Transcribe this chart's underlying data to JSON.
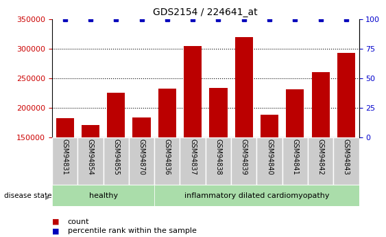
{
  "title": "GDS2154 / 224641_at",
  "samples": [
    "GSM94831",
    "GSM94854",
    "GSM94855",
    "GSM94870",
    "GSM94836",
    "GSM94837",
    "GSM94838",
    "GSM94839",
    "GSM94840",
    "GSM94841",
    "GSM94842",
    "GSM94843"
  ],
  "counts": [
    183000,
    171000,
    225000,
    184000,
    232000,
    304000,
    234000,
    319000,
    188000,
    231000,
    260000,
    293000
  ],
  "percentile": [
    100,
    100,
    100,
    100,
    100,
    100,
    100,
    100,
    100,
    100,
    100,
    100
  ],
  "healthy_count": 4,
  "groups": [
    "healthy",
    "inflammatory dilated cardiomyopathy"
  ],
  "bar_color": "#bb0000",
  "dot_color": "#0000bb",
  "ylim_left": [
    150000,
    350000
  ],
  "ylim_right": [
    0,
    100
  ],
  "yticks_left": [
    150000,
    200000,
    250000,
    300000,
    350000
  ],
  "yticks_right": [
    0,
    25,
    50,
    75,
    100
  ],
  "gridlines": [
    200000,
    250000,
    300000
  ],
  "bg_color": "#ffffff",
  "group_healthy_color": "#aaddaa",
  "group_disease_color": "#aaddaa",
  "tick_label_color_left": "#cc0000",
  "tick_label_color_right": "#0000cc",
  "legend_count_label": "count",
  "legend_pct_label": "percentile rank within the sample",
  "label_box_color": "#cccccc",
  "disease_state_label": "disease state"
}
